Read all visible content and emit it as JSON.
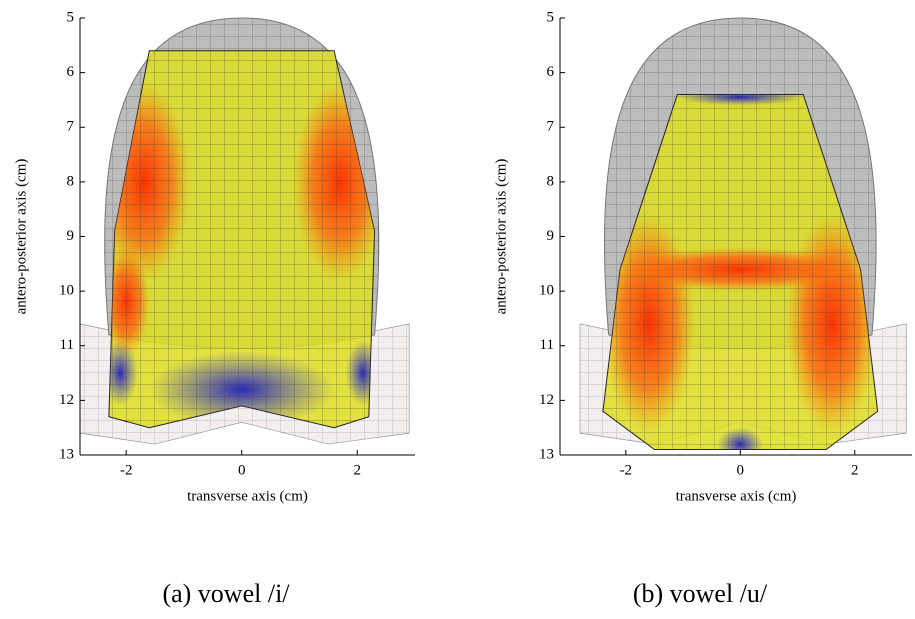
{
  "figure": {
    "panels": [
      {
        "caption": "(a) vowel /i/",
        "x_label": "transverse axis (cm)",
        "y_label": "antero-posterior axis (cm)",
        "xlim": [
          -2.8,
          3
        ],
        "ylim": [
          13,
          5
        ],
        "xticks": [
          -2,
          0,
          2
        ],
        "yticks": [
          5,
          6,
          7,
          8,
          9,
          10,
          11,
          12,
          13
        ]
      },
      {
        "caption": "(b) vowel /u/",
        "x_label": "transverse axis (cm)",
        "y_label": "antero-posterior axis (cm)",
        "xlim": [
          -3.15,
          3
        ],
        "ylim": [
          13,
          5
        ],
        "xticks": [
          -2,
          0,
          2
        ],
        "yticks": [
          5,
          6,
          7,
          8,
          9,
          10,
          11,
          12,
          13
        ]
      }
    ]
  }
}
